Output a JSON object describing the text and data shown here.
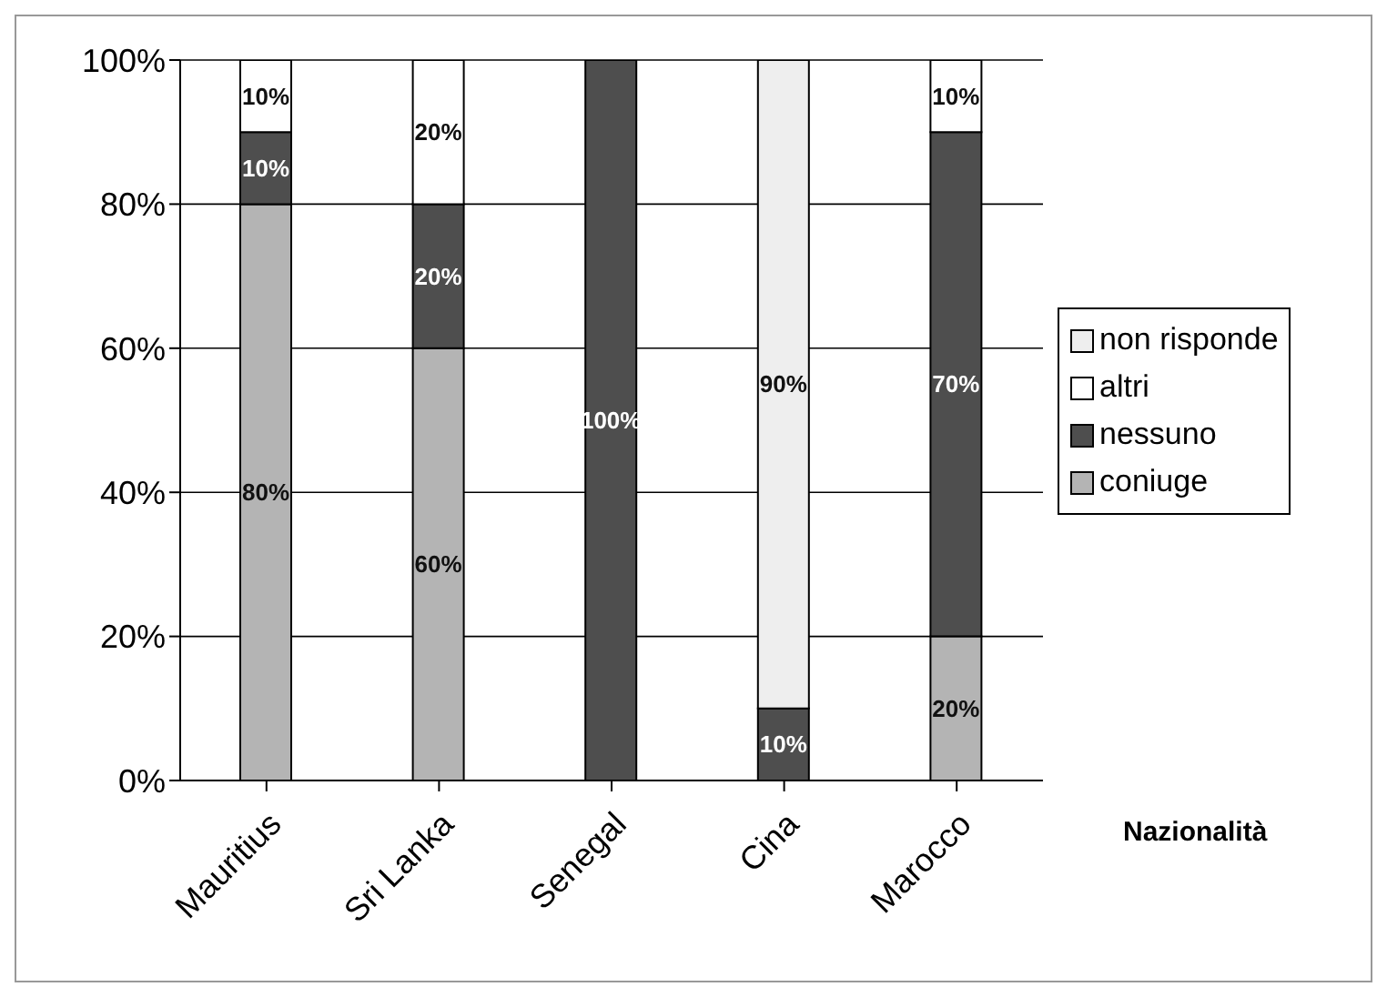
{
  "chart_data": {
    "type": "bar",
    "stacked": true,
    "xlabel": "Nazionalità",
    "categories": [
      "Mauritius",
      "Sri Lanka",
      "Senegal",
      "Cina",
      "Marocco"
    ],
    "series": [
      {
        "name": "coniuge",
        "color": "#b4b4b4",
        "values": [
          80,
          60,
          0,
          0,
          20
        ],
        "value_labels": [
          "80%",
          "60%",
          null,
          null,
          "20%"
        ]
      },
      {
        "name": "nessuno",
        "color": "#4e4e4e",
        "values": [
          10,
          20,
          100,
          10,
          70
        ],
        "value_labels": [
          "10%",
          "20%",
          "100%",
          "10%",
          "70%"
        ]
      },
      {
        "name": "altri",
        "color": "#ffffff",
        "values": [
          10,
          20,
          0,
          0,
          10
        ],
        "value_labels": [
          "10%",
          "20%",
          null,
          null,
          "10%"
        ]
      },
      {
        "name": "non risponde",
        "color": "#eeeeee",
        "values": [
          0,
          0,
          0,
          90,
          0
        ],
        "value_labels": [
          null,
          null,
          null,
          "90%",
          null
        ]
      }
    ],
    "ylim": [
      0,
      100
    ],
    "yticks": [
      {
        "value": 0,
        "label": "0%"
      },
      {
        "value": 20,
        "label": "20%"
      },
      {
        "value": 40,
        "label": "40%"
      },
      {
        "value": 60,
        "label": "60%"
      },
      {
        "value": 80,
        "label": "80%"
      },
      {
        "value": 100,
        "label": "100%"
      }
    ],
    "grid": "y",
    "legend": "right"
  }
}
